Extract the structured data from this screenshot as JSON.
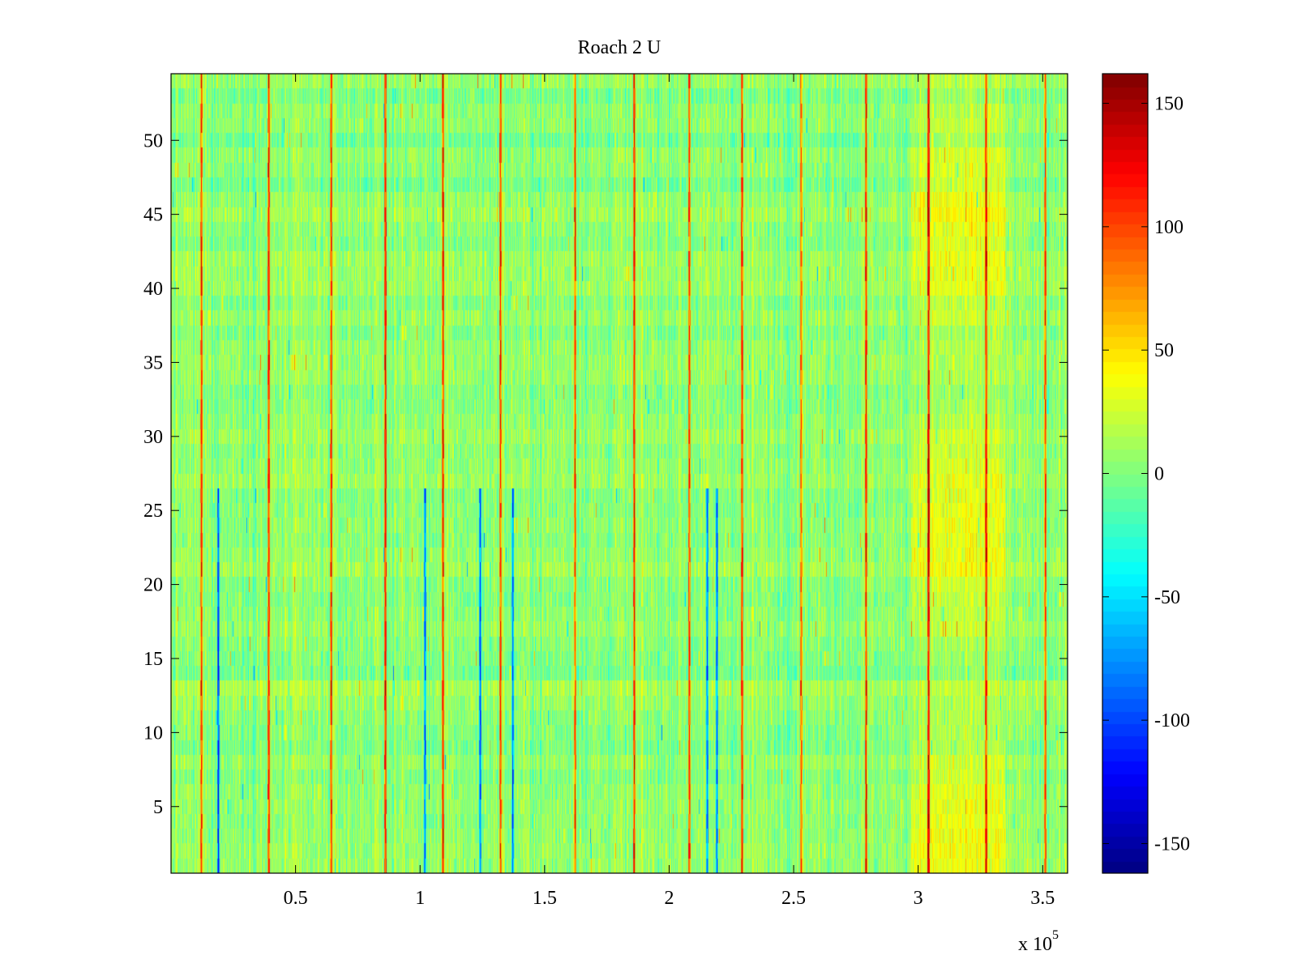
{
  "chart_data": {
    "type": "heatmap",
    "title": "Roach 2 U",
    "xlabel": "",
    "ylabel": "",
    "x_multiplier_label": {
      "base": "x 10",
      "exponent": "5"
    },
    "xlim": [
      0.0,
      3.6
    ],
    "ylim": [
      0.5,
      54.5
    ],
    "x_ticks": [
      0.5,
      1,
      1.5,
      2,
      2.5,
      3,
      3.5
    ],
    "x_tick_labels": [
      "0.5",
      "1",
      "1.5",
      "2",
      "2.5",
      "3",
      "3.5"
    ],
    "y_ticks": [
      5,
      10,
      15,
      20,
      25,
      30,
      35,
      40,
      45,
      50
    ],
    "y_tick_labels": [
      "5",
      "10",
      "15",
      "20",
      "25",
      "30",
      "35",
      "40",
      "45",
      "50"
    ],
    "rows": 54,
    "colormap": "jet",
    "clim": [
      -162,
      162
    ],
    "colorbar_ticks": [
      -150,
      -100,
      -50,
      0,
      50,
      100,
      150
    ],
    "colorbar_tick_labels": [
      "-150",
      "-100",
      "-50",
      "0",
      "50",
      "100",
      "150"
    ],
    "background_level": 5,
    "warm_region": {
      "x_range": [
        2.97,
        3.35
      ],
      "level": 28
    },
    "positive_spikes_x": [
      0.12,
      0.39,
      0.64,
      0.86,
      1.09,
      1.32,
      1.62,
      1.86,
      2.08,
      2.29,
      2.53,
      2.79,
      3.04,
      3.27,
      3.51
    ],
    "negative_spikes_x": [
      0.19,
      1.02,
      1.24,
      1.37,
      2.15,
      2.19
    ],
    "negative_spikes_max_row": 26,
    "grid": false
  }
}
